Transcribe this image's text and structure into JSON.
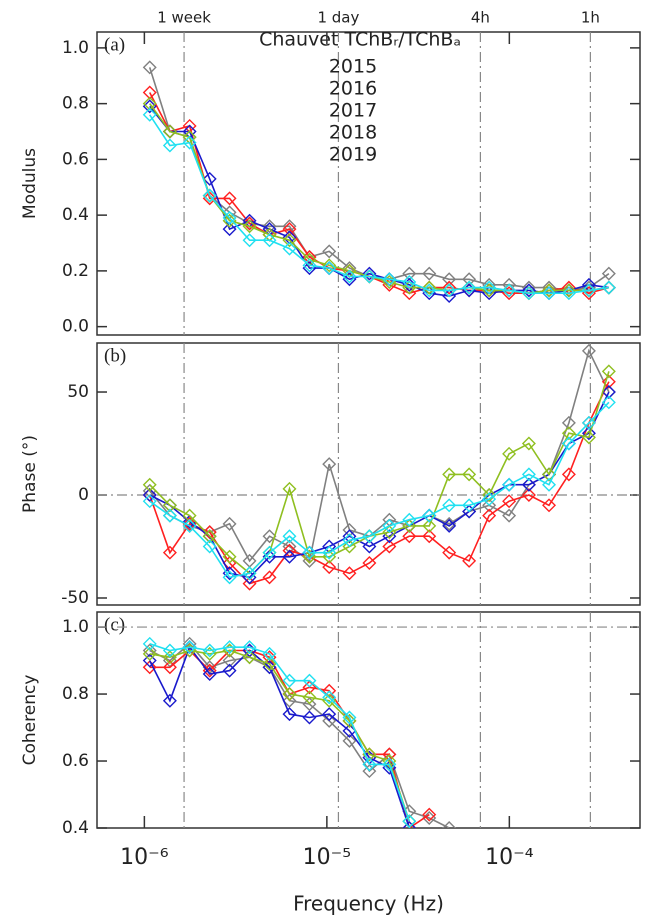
{
  "chart_data": [
    {
      "type": "line",
      "panel": "(a)",
      "ylabel": "Modulus",
      "legend_title": "Chauvet TChBᵣ/TChBₐ",
      "xlog": true,
      "xlim": [
        5.5e-07,
        0.00052
      ],
      "ylim": [
        -0.03,
        1.057
      ],
      "yticks": [
        {
          "value": 0,
          "label": "0.0"
        },
        {
          "value": 0.2,
          "label": "0.2"
        },
        {
          "value": 0.4,
          "label": "0.4"
        },
        {
          "value": 0.6,
          "label": "0.6"
        },
        {
          "value": 0.8,
          "label": "0.8"
        },
        {
          "value": 1,
          "label": "1.0"
        }
      ],
      "top_ticks": [
        {
          "value": 1.65e-06,
          "label": "1 week"
        },
        {
          "value": 1.157e-05,
          "label": "1 day"
        },
        {
          "value": 6.94e-05,
          "label": "4h"
        },
        {
          "value": 0.000278,
          "label": "1h"
        }
      ],
      "x": [
        1.07e-06,
        1.38e-06,
        1.77e-06,
        2.28e-06,
        2.93e-06,
        3.77e-06,
        4.85e-06,
        6.24e-06,
        8.03e-06,
        1.03e-05,
        1.33e-05,
        1.71e-05,
        2.2e-05,
        2.83e-05,
        3.64e-05,
        4.68e-05,
        6.02e-05,
        7.75e-05,
        9.97e-05,
        0.000128,
        0.000165,
        0.000212,
        0.000273,
        0.000351
      ],
      "series": [
        {
          "name": "2015",
          "color": "#808080",
          "values": [
            0.93,
            0.7,
            0.68,
            0.47,
            0.41,
            0.37,
            0.36,
            0.36,
            0.25,
            0.27,
            0.21,
            0.18,
            0.17,
            0.19,
            0.19,
            0.17,
            0.17,
            0.15,
            0.15,
            0.14,
            0.14,
            0.13,
            0.14,
            0.19
          ]
        },
        {
          "name": "2016",
          "color": "#ff2020",
          "values": [
            0.84,
            0.7,
            0.72,
            0.46,
            0.46,
            0.37,
            0.33,
            0.35,
            0.25,
            0.21,
            0.2,
            0.18,
            0.15,
            0.12,
            0.14,
            0.14,
            0.13,
            0.13,
            0.12,
            0.12,
            0.13,
            0.14,
            0.12,
            0.14
          ]
        },
        {
          "name": "2017",
          "color": "#1a1acc",
          "values": [
            0.79,
            0.7,
            0.7,
            0.53,
            0.35,
            0.38,
            0.35,
            0.32,
            0.21,
            0.21,
            0.17,
            0.19,
            0.17,
            0.15,
            0.12,
            0.11,
            0.13,
            0.12,
            0.13,
            0.13,
            0.12,
            0.13,
            0.15,
            0.14
          ]
        },
        {
          "name": "2018",
          "color": "#8fbf20",
          "values": [
            0.8,
            0.7,
            0.68,
            0.47,
            0.38,
            0.36,
            0.33,
            0.31,
            0.24,
            0.22,
            0.2,
            0.18,
            0.16,
            0.14,
            0.14,
            0.13,
            0.14,
            0.13,
            0.13,
            0.12,
            0.13,
            0.13,
            0.13,
            0.14
          ]
        },
        {
          "name": "2019",
          "color": "#20e0f0",
          "values": [
            0.76,
            0.65,
            0.66,
            0.47,
            0.39,
            0.31,
            0.31,
            0.28,
            0.22,
            0.21,
            0.18,
            0.18,
            0.17,
            0.16,
            0.13,
            0.13,
            0.14,
            0.14,
            0.13,
            0.12,
            0.12,
            0.12,
            0.13,
            0.14
          ]
        }
      ]
    },
    {
      "type": "line",
      "panel": "(b)",
      "ylabel": "Phase (°)",
      "zero_line": 0,
      "xlog": true,
      "xlim": [
        5.5e-07,
        0.00052
      ],
      "ylim": [
        -53.4,
        73.8
      ],
      "yticks": [
        -50,
        0,
        50
      ],
      "x": [
        1.07e-06,
        1.38e-06,
        1.77e-06,
        2.28e-06,
        2.93e-06,
        3.77e-06,
        4.85e-06,
        6.24e-06,
        8.03e-06,
        1.03e-05,
        1.33e-05,
        1.71e-05,
        2.2e-05,
        2.83e-05,
        3.64e-05,
        4.68e-05,
        6.02e-05,
        7.75e-05,
        9.97e-05,
        0.000128,
        0.000165,
        0.000212,
        0.000273,
        0.000351
      ],
      "series": [
        {
          "name": "2015",
          "color": "#808080",
          "values": [
            2,
            -10,
            -15,
            -18,
            -14,
            -32,
            -20,
            -25,
            -32,
            15,
            -17,
            -20,
            -12,
            -15,
            -10,
            -14,
            -8,
            -5,
            -10,
            5,
            10,
            35,
            70,
            50
          ]
        },
        {
          "name": "2016",
          "color": "#ff2020",
          "values": [
            0,
            -28,
            -14,
            -18,
            -33,
            -43,
            -40,
            -27,
            -30,
            -35,
            -38,
            -33,
            -25,
            -20,
            -20,
            -28,
            -32,
            -10,
            -3,
            0,
            -5,
            10,
            35,
            55
          ]
        },
        {
          "name": "2017",
          "color": "#1a1acc",
          "values": [
            0,
            -5,
            -13,
            -20,
            -38,
            -40,
            -30,
            -30,
            -28,
            -25,
            -20,
            -25,
            -20,
            -15,
            -10,
            -15,
            -8,
            0,
            5,
            5,
            10,
            25,
            30,
            50
          ]
        },
        {
          "name": "2018",
          "color": "#8fbf20",
          "values": [
            5,
            -5,
            -10,
            -20,
            -30,
            -38,
            -28,
            3,
            -30,
            -30,
            -25,
            -20,
            -18,
            -15,
            -15,
            10,
            10,
            0,
            20,
            25,
            10,
            30,
            28,
            60
          ]
        },
        {
          "name": "2019",
          "color": "#20e0f0",
          "values": [
            -3,
            -10,
            -15,
            -25,
            -40,
            -38,
            -28,
            -20,
            -28,
            -28,
            -22,
            -20,
            -15,
            -12,
            -10,
            -5,
            -5,
            -2,
            5,
            10,
            5,
            25,
            35,
            45
          ]
        }
      ]
    },
    {
      "type": "line",
      "panel": "(c)",
      "ylabel": "Coherency",
      "xlabel": "Frequency (Hz)",
      "ref_line": 1,
      "xlog": true,
      "xlim": [
        5.5e-07,
        0.00052
      ],
      "ylim": [
        0.4,
        1.045
      ],
      "yticks": [
        {
          "value": 0.4,
          "label": "0.4"
        },
        {
          "value": 0.6,
          "label": "0.6"
        },
        {
          "value": 0.8,
          "label": "0.8"
        },
        {
          "value": 1,
          "label": "1.0"
        }
      ],
      "xticks": [
        {
          "value": 1e-06,
          "label": "10⁻⁶"
        },
        {
          "value": 1e-05,
          "label": "10⁻⁵"
        },
        {
          "value": 0.0001,
          "label": "10⁻⁴"
        }
      ],
      "x": [
        1.07e-06,
        1.38e-06,
        1.77e-06,
        2.28e-06,
        2.93e-06,
        3.77e-06,
        4.85e-06,
        6.24e-06,
        8.03e-06,
        1.03e-05,
        1.33e-05,
        1.71e-05,
        2.2e-05,
        2.83e-05,
        3.64e-05,
        4.68e-05,
        6.02e-05,
        7.75e-05,
        9.97e-05,
        0.000128,
        0.000165,
        0.000212,
        0.000273,
        0.000351
      ],
      "series": [
        {
          "name": "2015",
          "color": "#808080",
          "values": [
            0.93,
            0.9,
            0.95,
            0.88,
            0.9,
            0.91,
            0.88,
            0.78,
            0.77,
            0.72,
            0.66,
            0.57,
            0.62,
            0.45,
            0.43,
            0.4,
            null,
            null,
            null,
            null,
            null,
            null,
            null,
            null
          ]
        },
        {
          "name": "2016",
          "color": "#ff2020",
          "values": [
            0.88,
            0.88,
            0.93,
            0.87,
            0.93,
            0.93,
            0.91,
            0.8,
            0.82,
            0.81,
            0.72,
            0.62,
            0.62,
            0.4,
            0.44,
            null,
            null,
            null,
            null,
            null,
            null,
            null,
            null,
            null
          ]
        },
        {
          "name": "2017",
          "color": "#1a1acc",
          "values": [
            0.9,
            0.78,
            0.94,
            0.86,
            0.87,
            0.93,
            0.88,
            0.74,
            0.73,
            0.74,
            0.69,
            0.61,
            0.58,
            0.4,
            null,
            null,
            null,
            null,
            null,
            null,
            null,
            null,
            null,
            null
          ]
        },
        {
          "name": "2018",
          "color": "#8fbf20",
          "values": [
            0.92,
            0.91,
            0.93,
            0.92,
            0.93,
            0.91,
            0.89,
            0.8,
            0.79,
            0.78,
            0.72,
            0.62,
            0.6,
            0.42,
            null,
            null,
            null,
            null,
            null,
            null,
            null,
            null,
            null,
            null
          ]
        },
        {
          "name": "2019",
          "color": "#20e0f0",
          "values": [
            0.95,
            0.93,
            0.94,
            0.93,
            0.94,
            0.94,
            0.92,
            0.84,
            0.84,
            0.79,
            0.73,
            0.59,
            0.59,
            0.42,
            null,
            null,
            null,
            null,
            null,
            null,
            null,
            null,
            null,
            null
          ]
        }
      ]
    }
  ]
}
